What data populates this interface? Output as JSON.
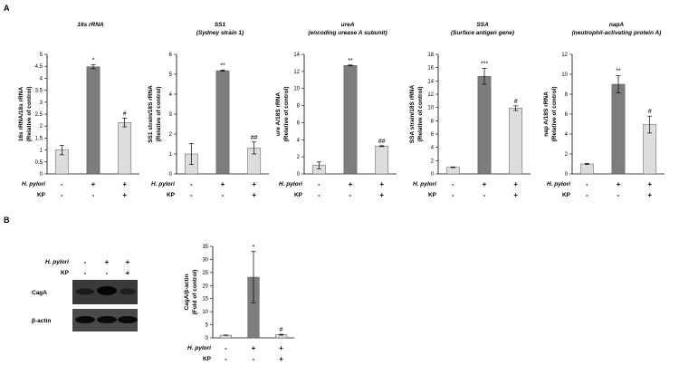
{
  "panel_labels": {
    "a": "A",
    "b": "B"
  },
  "treatment_rows": {
    "row1": "H. pylori",
    "row2": "KP"
  },
  "treatment_signs": {
    "row1": [
      "-",
      "+",
      "+"
    ],
    "row2": [
      "-",
      "-",
      "+"
    ]
  },
  "colors": {
    "control": "#dddddd",
    "hpylori": "#7d7d7d",
    "kp": "#dddddd",
    "blot_bg": "#3a3a3a"
  },
  "blot": {
    "rows": {
      "row1": "H. pylori",
      "row2": "KP"
    },
    "signs": {
      "row1": [
        "-",
        "+",
        "+"
      ],
      "row2": [
        "-",
        "-",
        "+"
      ]
    },
    "bands": [
      "CagA",
      "β-actin"
    ]
  },
  "chart_data": [
    {
      "type": "bar",
      "title": "16s rRNA",
      "subtitle": "",
      "ylabel": [
        "16s rRNA/18s rRNA",
        "(Relative of control)"
      ],
      "ylim": [
        0,
        5
      ],
      "yticks": [
        "0",
        "0.5",
        "1",
        "1.5",
        "2",
        "2.5",
        "3",
        "3.5",
        "4",
        "4.5",
        "5"
      ],
      "values": [
        1.0,
        4.48,
        2.15
      ],
      "errors": [
        0.2,
        0.08,
        0.18
      ],
      "significance": [
        "",
        "*",
        "#"
      ]
    },
    {
      "type": "bar",
      "title": "SS1",
      "subtitle": "(Sydney strain 1)",
      "ylabel": [
        "SS1 strain/18S rRNA",
        "(Relative of control)"
      ],
      "ylim": [
        0,
        6
      ],
      "yticks": [
        "0",
        "1",
        "2",
        "3",
        "4",
        "5",
        "6"
      ],
      "values": [
        1.0,
        5.18,
        1.3
      ],
      "errors": [
        0.52,
        0.03,
        0.3
      ],
      "significance": [
        "",
        "**",
        "##"
      ]
    },
    {
      "type": "bar",
      "title": "ureA",
      "subtitle": "(encoding urease  A subunit)",
      "ylabel": [
        "ure A/18S rRNA",
        "(Relative of control)"
      ],
      "ylim": [
        0,
        14
      ],
      "yticks": [
        "0",
        "2",
        "4",
        "6",
        "8",
        "10",
        "12",
        "14"
      ],
      "values": [
        1.0,
        12.7,
        3.25
      ],
      "errors": [
        0.4,
        0.05,
        0.05
      ],
      "significance": [
        "",
        "**",
        "##"
      ]
    },
    {
      "type": "bar",
      "title": "SSA",
      "subtitle": "(Surface antigen gene)",
      "ylabel": [
        "SSA strain/18S rRNA",
        "(Relative of control)"
      ],
      "ylim": [
        0,
        18
      ],
      "yticks": [
        "0",
        "2",
        "4",
        "6",
        "8",
        "10",
        "12",
        "14",
        "16",
        "18"
      ],
      "values": [
        1.0,
        14.7,
        9.9
      ],
      "errors": [
        0.05,
        1.2,
        0.35
      ],
      "significance": [
        "",
        "***",
        "#"
      ]
    },
    {
      "type": "bar",
      "title": "napA",
      "subtitle": "(neutrophil-activating  protein A)",
      "ylabel": [
        "nap A/18S rRNA",
        "(Relative of control)"
      ],
      "ylim": [
        0,
        12
      ],
      "yticks": [
        "0",
        "2",
        "4",
        "6",
        "8",
        "10",
        "12"
      ],
      "values": [
        1.0,
        9.0,
        4.95
      ],
      "errors": [
        0.05,
        0.85,
        0.85
      ],
      "significance": [
        "",
        "**",
        "#"
      ]
    },
    {
      "type": "bar",
      "title": "",
      "subtitle": "",
      "ylabel": [
        "CagA/β-actin",
        "(Fold of control)"
      ],
      "ylim": [
        0,
        35
      ],
      "yticks": [
        "0",
        "5",
        "10",
        "15",
        "20",
        "25",
        "30",
        "35"
      ],
      "values": [
        1.0,
        23.2,
        1.2
      ],
      "errors": [
        0.05,
        9.8,
        0.15
      ],
      "significance": [
        "",
        "*",
        "#"
      ]
    }
  ]
}
